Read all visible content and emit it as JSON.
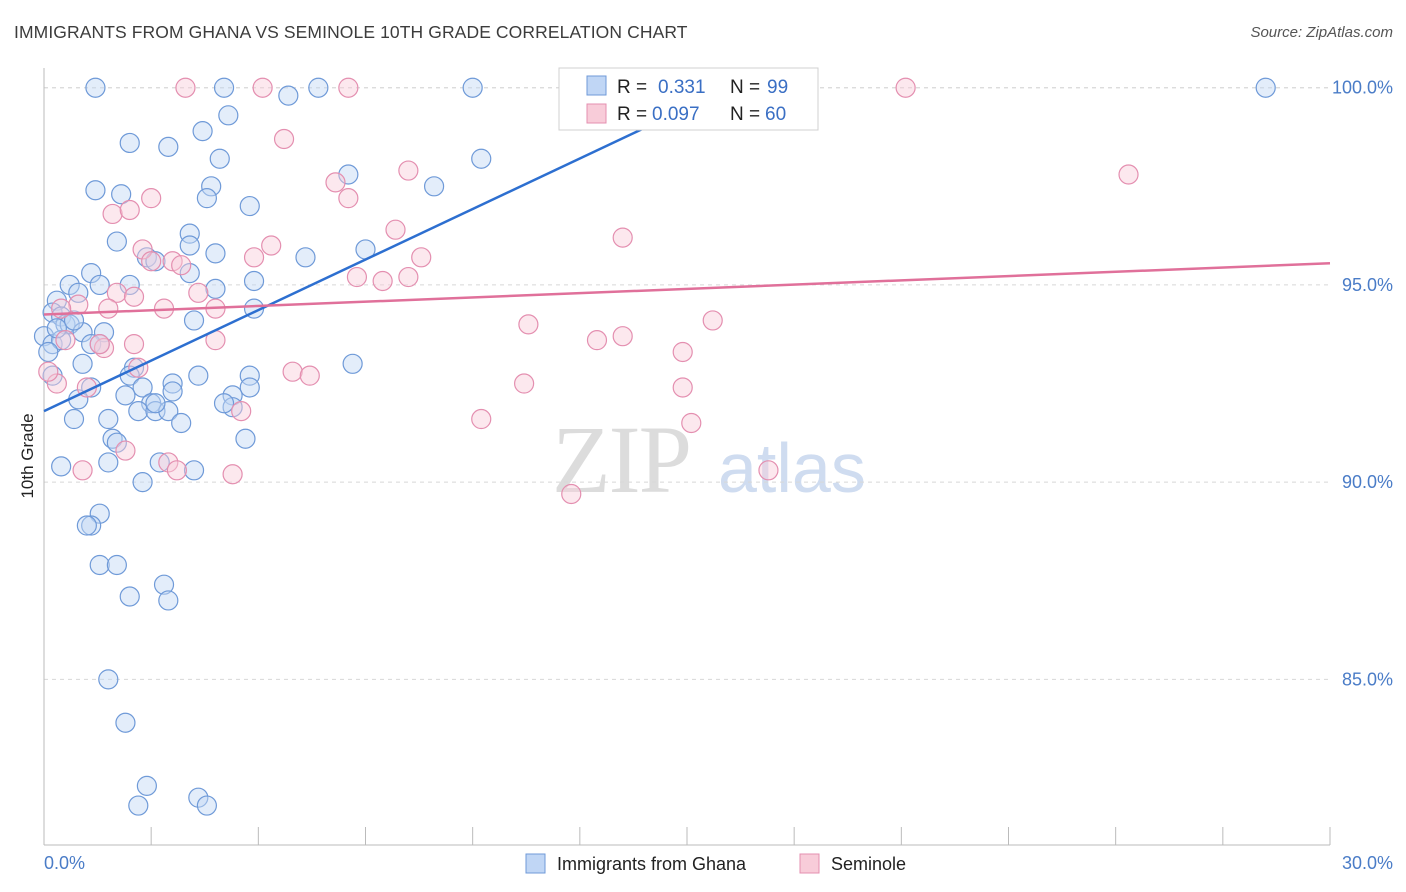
{
  "header": {
    "title": "IMMIGRANTS FROM GHANA VS SEMINOLE 10TH GRADE CORRELATION CHART",
    "source": "Source: ZipAtlas.com"
  },
  "colors": {
    "blue": "#4a7cc7",
    "blue_fill": "#c0d6f5",
    "blue_line": "#2d6fd0",
    "pink": "#e07aa0",
    "pink_fill": "#f8ccd9",
    "pink_line": "#e0709a",
    "grid": "#d8d8d8"
  },
  "legend": {
    "r_label": "R =",
    "n_label": "N =",
    "series1_r": "0.331",
    "series1_n": "99",
    "series2_r": "0.097",
    "series2_n": "60"
  },
  "watermark": {
    "zip": "ZIP",
    "atlas": "atlas"
  },
  "chart_data": {
    "type": "scatter",
    "title": "IMMIGRANTS FROM GHANA VS SEMINOLE 10TH GRADE CORRELATION CHART",
    "xlabel": "",
    "ylabel": "10th Grade",
    "xlim": [
      0,
      30
    ],
    "ylim": [
      80.8,
      100.5
    ],
    "x_tick_labels": [
      "0.0%",
      "30.0%"
    ],
    "y_ticks": [
      85,
      90,
      95,
      100
    ],
    "y_tick_labels": [
      "85.0%",
      "90.0%",
      "95.0%",
      "100.0%"
    ],
    "grid": true,
    "legend_position": "top-center",
    "series": [
      {
        "name": "Immigrants from Ghana",
        "color": "blue",
        "r": 0.331,
        "n": 99,
        "trend": [
          [
            0,
            91.8
          ],
          [
            16.0,
            100.0
          ]
        ],
        "points": [
          [
            1.2,
            100
          ],
          [
            4.2,
            100
          ],
          [
            6.4,
            100
          ],
          [
            10.0,
            100
          ],
          [
            28.5,
            100
          ],
          [
            5.7,
            99.8
          ],
          [
            4.3,
            99.3
          ],
          [
            3.7,
            98.9
          ],
          [
            2.0,
            98.6
          ],
          [
            2.9,
            98.5
          ],
          [
            4.1,
            98.2
          ],
          [
            10.2,
            98.2
          ],
          [
            7.1,
            97.8
          ],
          [
            9.1,
            97.5
          ],
          [
            1.2,
            97.4
          ],
          [
            3.9,
            97.5
          ],
          [
            1.8,
            97.3
          ],
          [
            3.8,
            97.2
          ],
          [
            4.8,
            97.0
          ],
          [
            1.7,
            96.1
          ],
          [
            3.4,
            96.3
          ],
          [
            3.4,
            96.0
          ],
          [
            4.0,
            95.8
          ],
          [
            2.4,
            95.7
          ],
          [
            2.6,
            95.6
          ],
          [
            6.1,
            95.7
          ],
          [
            7.5,
            95.9
          ],
          [
            1.1,
            95.3
          ],
          [
            3.4,
            95.3
          ],
          [
            4.9,
            95.1
          ],
          [
            0.6,
            95.0
          ],
          [
            1.3,
            95.0
          ],
          [
            2.0,
            95.0
          ],
          [
            4.0,
            94.9
          ],
          [
            0.8,
            94.8
          ],
          [
            0.3,
            94.6
          ],
          [
            4.9,
            94.4
          ],
          [
            0.2,
            94.3
          ],
          [
            0.4,
            94.2
          ],
          [
            0.5,
            94.0
          ],
          [
            0.6,
            94.0
          ],
          [
            3.5,
            94.1
          ],
          [
            0.0,
            93.7
          ],
          [
            0.2,
            93.5
          ],
          [
            0.4,
            93.6
          ],
          [
            0.9,
            93.8
          ],
          [
            1.4,
            93.8
          ],
          [
            1.1,
            93.5
          ],
          [
            1.3,
            93.5
          ],
          [
            0.9,
            93.0
          ],
          [
            2.1,
            92.9
          ],
          [
            2.0,
            92.7
          ],
          [
            3.6,
            92.7
          ],
          [
            4.8,
            92.7
          ],
          [
            7.2,
            93.0
          ],
          [
            1.1,
            92.4
          ],
          [
            2.3,
            92.4
          ],
          [
            3.0,
            92.5
          ],
          [
            4.8,
            92.4
          ],
          [
            0.8,
            92.1
          ],
          [
            1.9,
            92.2
          ],
          [
            2.5,
            92.0
          ],
          [
            3.0,
            92.3
          ],
          [
            4.4,
            92.2
          ],
          [
            2.2,
            91.8
          ],
          [
            2.6,
            91.8
          ],
          [
            2.9,
            91.8
          ],
          [
            4.4,
            91.9
          ],
          [
            0.7,
            91.6
          ],
          [
            1.5,
            91.6
          ],
          [
            3.2,
            91.5
          ],
          [
            1.6,
            91.1
          ],
          [
            1.7,
            91.0
          ],
          [
            4.7,
            91.1
          ],
          [
            0.4,
            90.4
          ],
          [
            1.5,
            90.5
          ],
          [
            2.7,
            90.5
          ],
          [
            3.5,
            90.3
          ],
          [
            2.3,
            90.0
          ],
          [
            1.3,
            89.2
          ],
          [
            1.1,
            88.9
          ],
          [
            1.0,
            88.9
          ],
          [
            1.3,
            87.9
          ],
          [
            1.7,
            87.9
          ],
          [
            2.8,
            87.4
          ],
          [
            2.0,
            87.1
          ],
          [
            2.9,
            87.0
          ],
          [
            1.5,
            85.0
          ],
          [
            1.9,
            83.9
          ],
          [
            2.4,
            82.3
          ],
          [
            2.2,
            81.8
          ],
          [
            3.6,
            82.0
          ],
          [
            3.8,
            81.8
          ],
          [
            0.2,
            92.7
          ],
          [
            0.1,
            93.3
          ],
          [
            0.3,
            93.9
          ],
          [
            2.6,
            92.0
          ],
          [
            4.2,
            92.0
          ],
          [
            0.7,
            94.1
          ]
        ]
      },
      {
        "name": "Seminole",
        "color": "pink",
        "r": 0.097,
        "n": 60,
        "trend": [
          [
            0,
            94.25
          ],
          [
            30,
            95.55
          ]
        ],
        "points": [
          [
            3.3,
            100
          ],
          [
            5.1,
            100
          ],
          [
            7.1,
            100
          ],
          [
            20.1,
            100
          ],
          [
            5.6,
            98.7
          ],
          [
            8.5,
            97.9
          ],
          [
            6.8,
            97.6
          ],
          [
            7.1,
            97.2
          ],
          [
            25.3,
            97.8
          ],
          [
            2.5,
            97.2
          ],
          [
            1.6,
            96.8
          ],
          [
            2.0,
            96.9
          ],
          [
            8.2,
            96.4
          ],
          [
            13.5,
            96.2
          ],
          [
            5.3,
            96.0
          ],
          [
            2.3,
            95.9
          ],
          [
            4.9,
            95.7
          ],
          [
            8.8,
            95.7
          ],
          [
            2.5,
            95.6
          ],
          [
            3.0,
            95.6
          ],
          [
            3.2,
            95.5
          ],
          [
            7.3,
            95.2
          ],
          [
            7.9,
            95.1
          ],
          [
            8.5,
            95.2
          ],
          [
            3.6,
            94.8
          ],
          [
            1.7,
            94.8
          ],
          [
            2.1,
            94.7
          ],
          [
            0.8,
            94.5
          ],
          [
            1.5,
            94.4
          ],
          [
            2.8,
            94.4
          ],
          [
            4.0,
            94.4
          ],
          [
            11.3,
            94.0
          ],
          [
            15.6,
            94.1
          ],
          [
            0.5,
            93.6
          ],
          [
            1.4,
            93.4
          ],
          [
            1.3,
            93.5
          ],
          [
            4.0,
            93.6
          ],
          [
            12.9,
            93.6
          ],
          [
            13.5,
            93.7
          ],
          [
            14.9,
            93.3
          ],
          [
            2.2,
            92.9
          ],
          [
            5.8,
            92.8
          ],
          [
            6.2,
            92.7
          ],
          [
            0.3,
            92.5
          ],
          [
            1.0,
            92.4
          ],
          [
            11.2,
            92.5
          ],
          [
            14.9,
            92.4
          ],
          [
            4.6,
            91.8
          ],
          [
            10.2,
            91.6
          ],
          [
            15.1,
            91.5
          ],
          [
            1.9,
            90.8
          ],
          [
            2.9,
            90.5
          ],
          [
            3.1,
            90.3
          ],
          [
            0.9,
            90.3
          ],
          [
            4.4,
            90.2
          ],
          [
            12.3,
            89.7
          ],
          [
            16.9,
            90.3
          ],
          [
            0.1,
            92.8
          ],
          [
            0.4,
            94.4
          ],
          [
            2.1,
            93.5
          ]
        ]
      }
    ]
  },
  "bottom_legend": [
    "Immigrants from Ghana",
    "Seminole"
  ]
}
